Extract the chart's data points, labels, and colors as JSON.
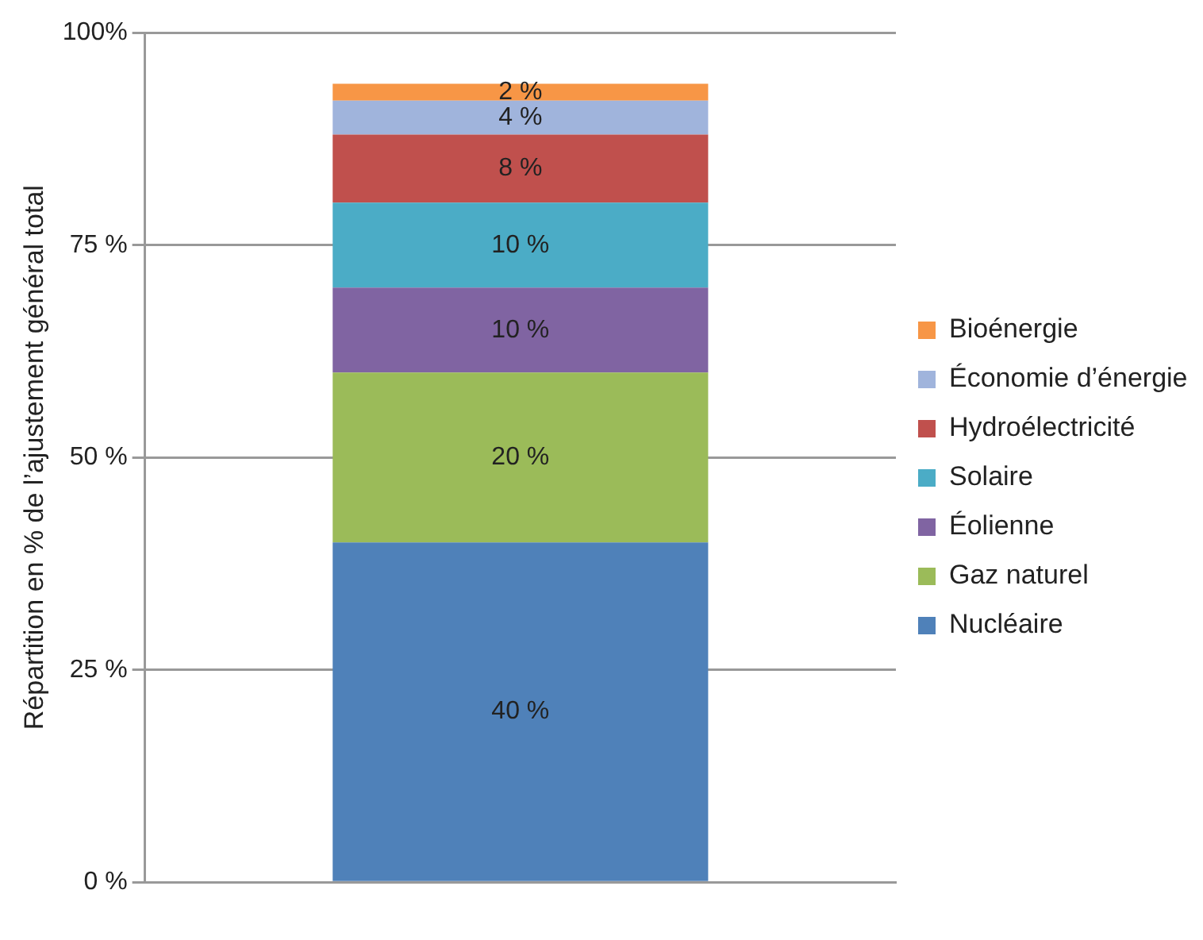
{
  "chart_data": {
    "type": "bar",
    "stacked": true,
    "ylabel": "Répartition en % de l’ajustement général total",
    "categories": [
      null
    ],
    "series": [
      {
        "name": "Nucléaire",
        "color": "#4f81b9",
        "values": [
          40
        ],
        "value_labels": [
          "40 %"
        ]
      },
      {
        "name": "Gaz naturel",
        "color": "#9bbb59",
        "values": [
          20
        ],
        "value_labels": [
          "20 %"
        ]
      },
      {
        "name": "Éolienne",
        "color": "#8064a2",
        "values": [
          10
        ],
        "value_labels": [
          "10 %"
        ]
      },
      {
        "name": "Solaire",
        "color": "#4bacc6",
        "values": [
          10
        ],
        "value_labels": [
          "10 %"
        ]
      },
      {
        "name": "Hydroélectricité",
        "color": "#c0504d",
        "values": [
          8
        ],
        "value_labels": [
          "8 %"
        ]
      },
      {
        "name": "Économie d’énergie",
        "color": "#a0b4dc",
        "values": [
          4
        ],
        "value_labels": [
          "4 %"
        ]
      },
      {
        "name": "Bioénergie",
        "color": "#f79646",
        "values": [
          2
        ],
        "value_labels": [
          "2 %"
        ]
      }
    ],
    "ylim": [
      0,
      100
    ],
    "yticks": [
      {
        "value": 0,
        "label": "0 %"
      },
      {
        "value": 25,
        "label": "25 %"
      },
      {
        "value": 50,
        "label": "50 %"
      },
      {
        "value": 75,
        "label": "75 %"
      },
      {
        "value": 100,
        "label": "100%"
      }
    ],
    "grid": "y",
    "legend": "right"
  }
}
